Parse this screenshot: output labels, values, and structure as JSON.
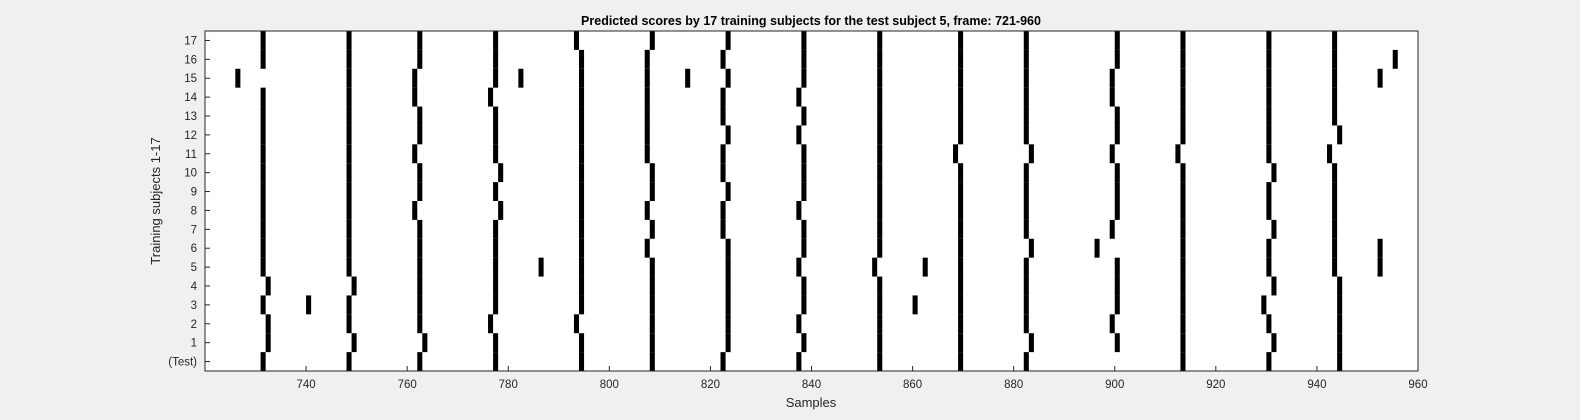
{
  "chart_data": {
    "type": "heatmap",
    "title": "Predicted scores by 17 training subjects for the test subject 5, frame: 721-960",
    "xlabel": "Samples",
    "ylabel": "Training subjects 1-17",
    "xlim": [
      721,
      960
    ],
    "xticks": [
      740,
      760,
      780,
      800,
      820,
      840,
      860,
      880,
      900,
      920,
      940,
      960
    ],
    "yticklabels": [
      "(Test)",
      "1",
      "2",
      "3",
      "4",
      "5",
      "6",
      "7",
      "8",
      "9",
      "10",
      "11",
      "12",
      "13",
      "14",
      "15",
      "16",
      "17"
    ],
    "colors": {
      "background": "#f0f0f0",
      "plot_bg": "#ffffff",
      "mark": "#000000",
      "axis": "#262626"
    },
    "rows": [
      {
        "label": "(Test)",
        "samples": [
          732,
          749,
          763,
          778,
          795,
          809,
          823,
          838,
          854,
          870,
          883,
          914,
          931,
          945
        ]
      },
      {
        "label": "1",
        "samples": [
          733,
          750,
          764,
          778,
          795,
          809,
          824,
          839,
          854,
          870,
          884,
          901,
          914,
          932,
          945
        ]
      },
      {
        "label": "2",
        "samples": [
          733,
          749,
          763,
          777,
          794,
          809,
          824,
          838,
          854,
          870,
          883,
          900,
          914,
          931,
          945
        ]
      },
      {
        "label": "3",
        "samples": [
          732,
          741,
          749,
          763,
          778,
          795,
          809,
          824,
          839,
          854,
          861,
          870,
          883,
          901,
          914,
          930,
          945
        ]
      },
      {
        "label": "4",
        "samples": [
          733,
          750,
          763,
          778,
          795,
          809,
          824,
          839,
          854,
          870,
          883,
          901,
          914,
          932,
          945
        ]
      },
      {
        "label": "5",
        "samples": [
          732,
          749,
          763,
          778,
          787,
          795,
          809,
          824,
          838,
          853,
          863,
          870,
          883,
          901,
          914,
          931,
          944,
          953
        ]
      },
      {
        "label": "6",
        "samples": [
          732,
          749,
          763,
          778,
          795,
          808,
          824,
          839,
          854,
          870,
          884,
          897,
          914,
          931,
          944,
          953
        ]
      },
      {
        "label": "7",
        "samples": [
          732,
          749,
          763,
          778,
          795,
          809,
          823,
          839,
          854,
          870,
          883,
          900,
          914,
          932,
          944
        ]
      },
      {
        "label": "8",
        "samples": [
          732,
          749,
          762,
          779,
          795,
          808,
          823,
          838,
          854,
          870,
          883,
          901,
          914,
          931,
          944
        ]
      },
      {
        "label": "9",
        "samples": [
          732,
          749,
          763,
          778,
          795,
          809,
          824,
          839,
          854,
          870,
          883,
          901,
          914,
          931,
          944
        ]
      },
      {
        "label": "10",
        "samples": [
          732,
          749,
          763,
          779,
          795,
          809,
          823,
          839,
          854,
          870,
          883,
          901,
          914,
          932,
          944
        ]
      },
      {
        "label": "11",
        "samples": [
          732,
          749,
          762,
          778,
          795,
          808,
          823,
          839,
          854,
          869,
          884,
          900,
          913,
          931,
          943
        ]
      },
      {
        "label": "12",
        "samples": [
          732,
          749,
          763,
          778,
          795,
          808,
          824,
          838,
          854,
          870,
          883,
          901,
          914,
          931,
          945
        ]
      },
      {
        "label": "13",
        "samples": [
          732,
          749,
          763,
          778,
          795,
          808,
          823,
          839,
          854,
          870,
          883,
          901,
          914,
          931,
          944
        ]
      },
      {
        "label": "14",
        "samples": [
          732,
          749,
          762,
          777,
          795,
          808,
          823,
          838,
          854,
          870,
          883,
          900,
          914,
          931,
          944
        ]
      },
      {
        "label": "15",
        "samples": [
          727,
          749,
          762,
          778,
          783,
          795,
          808,
          816,
          824,
          839,
          854,
          870,
          883,
          900,
          914,
          931,
          944,
          953
        ]
      },
      {
        "label": "16",
        "samples": [
          732,
          749,
          763,
          778,
          795,
          808,
          823,
          839,
          854,
          870,
          883,
          901,
          914,
          931,
          944,
          956
        ]
      },
      {
        "label": "17",
        "samples": [
          732,
          749,
          763,
          778,
          794,
          809,
          824,
          839,
          854,
          870,
          883,
          901,
          914,
          931,
          944
        ]
      }
    ]
  }
}
